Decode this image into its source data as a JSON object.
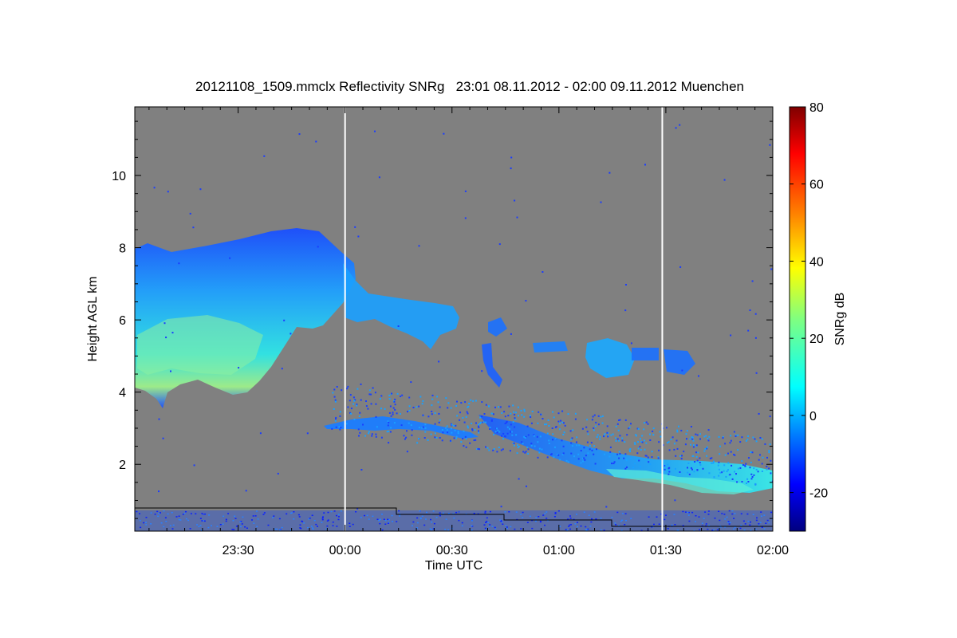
{
  "chart_data": {
    "type": "heatmap",
    "title": "20121108_1509.mmclx Reflectivity SNRg   23:01 08.11.2012 - 02:00 09.11.2012 Muenchen",
    "xlabel": "Time UTC",
    "ylabel": "Height AGL km",
    "xlim": [
      "23:01",
      "02:00"
    ],
    "ylim": [
      0.15,
      11.9
    ],
    "x_tick_labels": [
      "23:30",
      "00:00",
      "00:30",
      "01:00",
      "01:30",
      "02:00"
    ],
    "x_tick_minutes": [
      29,
      59,
      89,
      119,
      149,
      179
    ],
    "y_ticks": [
      2,
      4,
      6,
      8,
      10
    ],
    "y_tick_labels": [
      "2",
      "4",
      "6",
      "8",
      "10"
    ],
    "colorbar": {
      "label": "SNRg dB",
      "range": [
        -30,
        80
      ],
      "ticks": [
        -20,
        0,
        20,
        40,
        60,
        80
      ],
      "tick_labels": [
        "-20",
        "0",
        "20",
        "40",
        "60",
        "80"
      ]
    },
    "background_color": "#808080",
    "marker_lines_minutes": [
      59,
      148
    ],
    "features": [
      {
        "name": "upper cloud layer",
        "t_start": 0,
        "t_end": 90,
        "base_km": 3.8,
        "top_km": 8.6,
        "peak_snr_db": 20
      },
      {
        "name": "mid-level cloud",
        "t_start": 62,
        "t_end": 90,
        "base_km": 5.4,
        "top_km": 6.8,
        "peak_snr_db": 5
      },
      {
        "name": "cloud fragments",
        "t_start": 100,
        "t_end": 157,
        "base_km": 4.6,
        "top_km": 5.5,
        "peak_snr_db": 8
      },
      {
        "name": "descending layer",
        "t_start": 53,
        "t_end": 179,
        "base_km": 1.1,
        "top_km": 3.3,
        "peak_snr_db": 15
      }
    ]
  }
}
